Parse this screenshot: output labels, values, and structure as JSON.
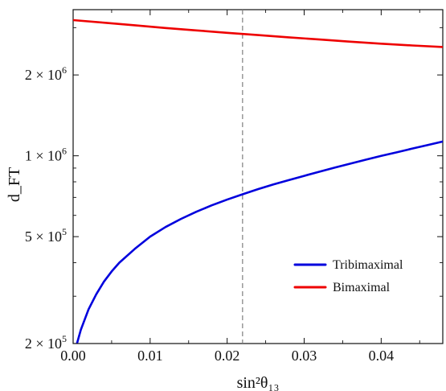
{
  "chart_data": {
    "type": "line",
    "xlabel": "sin²θ₁₃",
    "ylabel": "d_FT",
    "xlim": [
      0.0,
      0.048
    ],
    "ylim": [
      200000,
      3500000
    ],
    "y_scale": "log",
    "grid": false,
    "legend_position": "bottom-right",
    "reference_line": {
      "x": 0.022,
      "style": "dashed",
      "color": "#7f7f7f"
    },
    "x_ticks": [
      {
        "value": 0.0,
        "label": "0.00"
      },
      {
        "value": 0.01,
        "label": "0.01"
      },
      {
        "value": 0.02,
        "label": "0.02"
      },
      {
        "value": 0.03,
        "label": "0.03"
      },
      {
        "value": 0.04,
        "label": "0.04"
      }
    ],
    "y_ticks": [
      {
        "value": 200000,
        "mantissa": "2",
        "exponent": "5"
      },
      {
        "value": 500000,
        "mantissa": "5",
        "exponent": "5"
      },
      {
        "value": 1000000,
        "mantissa": "1",
        "exponent": "6"
      },
      {
        "value": 2000000,
        "mantissa": "2",
        "exponent": "6"
      }
    ],
    "series": [
      {
        "name": "Tribimaximal",
        "color": "#0000dd",
        "x": [
          0.0,
          0.0005,
          0.001,
          0.002,
          0.003,
          0.004,
          0.005,
          0.006,
          0.008,
          0.01,
          0.012,
          0.014,
          0.016,
          0.018,
          0.02,
          0.022,
          0.024,
          0.026,
          0.028,
          0.03,
          0.032,
          0.034,
          0.036,
          0.038,
          0.04,
          0.042,
          0.044,
          0.046,
          0.048
        ],
        "values": [
          180000,
          200000,
          225000,
          268000,
          305000,
          340000,
          371000,
          400000,
          450000,
          500000,
          543000,
          582000,
          619000,
          654000,
          687000,
          719000,
          751000,
          782000,
          812000,
          842000,
          873000,
          904000,
          935000,
          967000,
          999000,
          1030000,
          1063000,
          1096000,
          1130000
        ]
      },
      {
        "name": "Bimaximal",
        "color": "#ee0000",
        "x": [
          0.0,
          0.004,
          0.008,
          0.012,
          0.016,
          0.02,
          0.024,
          0.028,
          0.032,
          0.036,
          0.04,
          0.044,
          0.048
        ],
        "values": [
          3200000,
          3130000,
          3060000,
          2990000,
          2930000,
          2870000,
          2815000,
          2760000,
          2710000,
          2660000,
          2615000,
          2575000,
          2540000
        ]
      }
    ]
  }
}
